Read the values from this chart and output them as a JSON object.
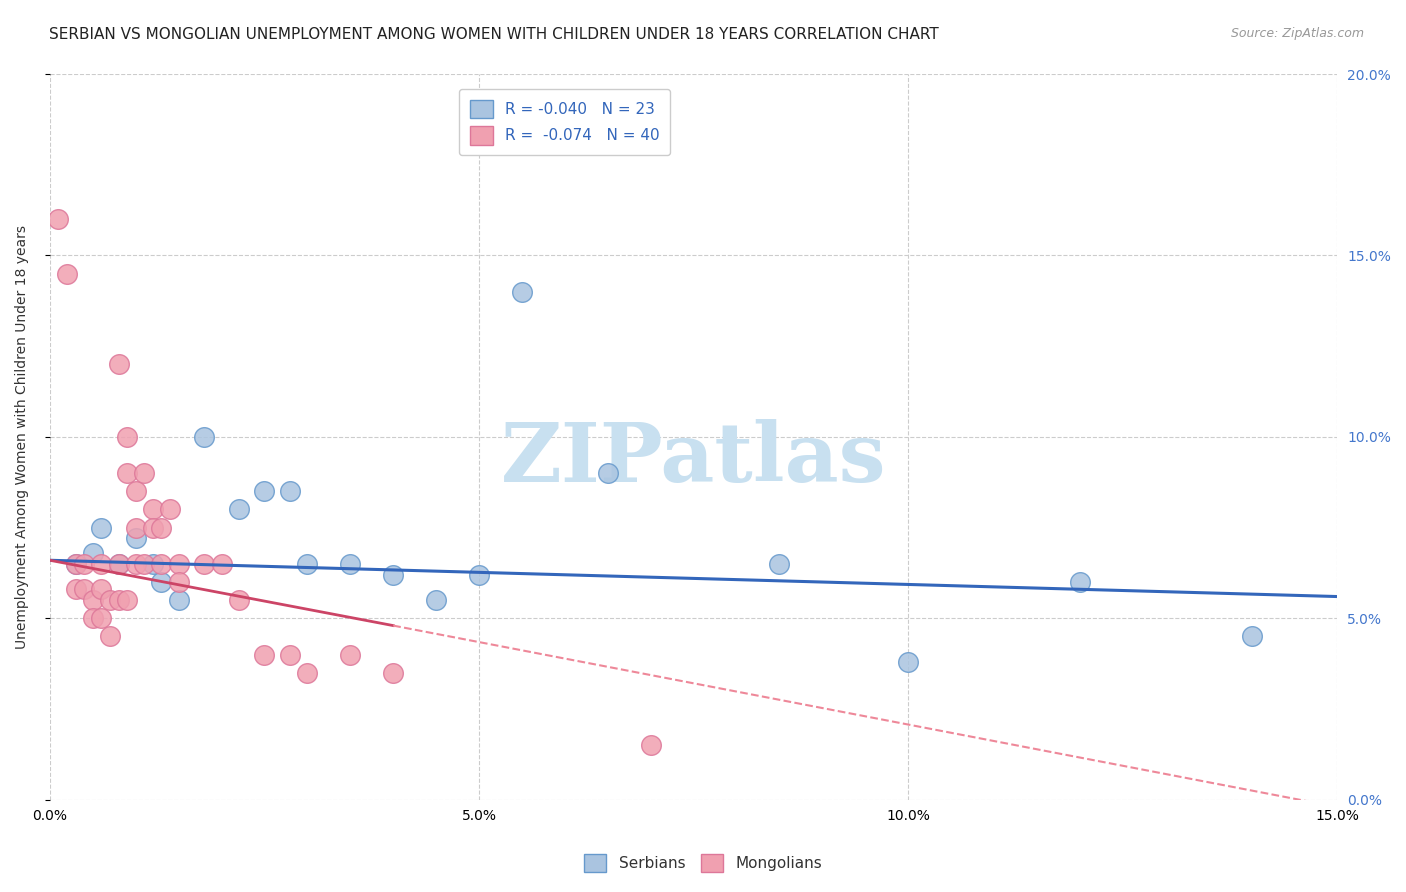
{
  "title": "SERBIAN VS MONGOLIAN UNEMPLOYMENT AMONG WOMEN WITH CHILDREN UNDER 18 YEARS CORRELATION CHART",
  "source": "Source: ZipAtlas.com",
  "ylabel": "Unemployment Among Women with Children Under 18 years",
  "xlim": [
    0.0,
    0.15
  ],
  "ylim": [
    0.0,
    0.2
  ],
  "xtick_labels": [
    "0.0%",
    "5.0%",
    "10.0%",
    "15.0%"
  ],
  "xtick_vals": [
    0.0,
    0.05,
    0.1,
    0.15
  ],
  "ytick_labels_right": [
    "20.0%",
    "15.0%",
    "10.0%",
    "5.0%",
    "0.0%"
  ],
  "ytick_vals": [
    0.2,
    0.15,
    0.1,
    0.05,
    0.0
  ],
  "background_color": "#ffffff",
  "grid_color": "#cccccc",
  "serbian_color": "#aac4e0",
  "mongolian_color": "#f0a0b0",
  "serbian_edge": "#6699cc",
  "mongolian_edge": "#dd7799",
  "trend_serbian_color": "#3366bb",
  "trend_mongolian_solid_color": "#cc4466",
  "trend_mongolian_dash_color": "#ee8899",
  "legend_serbian_label": "R = -0.040   N = 23",
  "legend_mongolian_label": "R =  -0.074   N = 40",
  "serbians_label": "Serbians",
  "mongolians_label": "Mongolians",
  "serbian_x": [
    0.003,
    0.005,
    0.006,
    0.008,
    0.01,
    0.012,
    0.013,
    0.015,
    0.018,
    0.022,
    0.025,
    0.028,
    0.03,
    0.035,
    0.04,
    0.045,
    0.05,
    0.055,
    0.065,
    0.085,
    0.1,
    0.12,
    0.14
  ],
  "serbian_y": [
    0.065,
    0.068,
    0.075,
    0.065,
    0.072,
    0.065,
    0.06,
    0.055,
    0.1,
    0.08,
    0.085,
    0.085,
    0.065,
    0.065,
    0.062,
    0.055,
    0.062,
    0.14,
    0.09,
    0.065,
    0.038,
    0.06,
    0.045
  ],
  "mongolian_x": [
    0.001,
    0.002,
    0.003,
    0.003,
    0.004,
    0.004,
    0.005,
    0.005,
    0.006,
    0.006,
    0.006,
    0.007,
    0.007,
    0.008,
    0.008,
    0.008,
    0.009,
    0.009,
    0.009,
    0.01,
    0.01,
    0.01,
    0.011,
    0.011,
    0.012,
    0.012,
    0.013,
    0.013,
    0.014,
    0.015,
    0.015,
    0.018,
    0.02,
    0.022,
    0.025,
    0.028,
    0.03,
    0.035,
    0.04,
    0.07
  ],
  "mongolian_y": [
    0.16,
    0.145,
    0.065,
    0.058,
    0.065,
    0.058,
    0.055,
    0.05,
    0.065,
    0.058,
    0.05,
    0.055,
    0.045,
    0.12,
    0.065,
    0.055,
    0.1,
    0.09,
    0.055,
    0.085,
    0.075,
    0.065,
    0.09,
    0.065,
    0.08,
    0.075,
    0.075,
    0.065,
    0.08,
    0.065,
    0.06,
    0.065,
    0.065,
    0.055,
    0.04,
    0.04,
    0.035,
    0.04,
    0.035,
    0.015
  ],
  "trend_serbian_x0": 0.0,
  "trend_serbian_y0": 0.066,
  "trend_serbian_x1": 0.15,
  "trend_serbian_y1": 0.056,
  "trend_mongol_solid_x0": 0.0,
  "trend_mongol_solid_y0": 0.066,
  "trend_mongol_solid_x1": 0.04,
  "trend_mongol_solid_y1": 0.048,
  "trend_mongol_dash_x0": 0.04,
  "trend_mongol_dash_y0": 0.048,
  "trend_mongol_dash_x1": 0.15,
  "trend_mongol_dash_y1": -0.002,
  "title_fontsize": 11,
  "source_fontsize": 9,
  "label_fontsize": 10,
  "tick_fontsize": 10,
  "legend_fontsize": 11,
  "watermark_text": "ZIPatlas",
  "watermark_color": "#c8e0f0",
  "watermark_fontsize": 60
}
